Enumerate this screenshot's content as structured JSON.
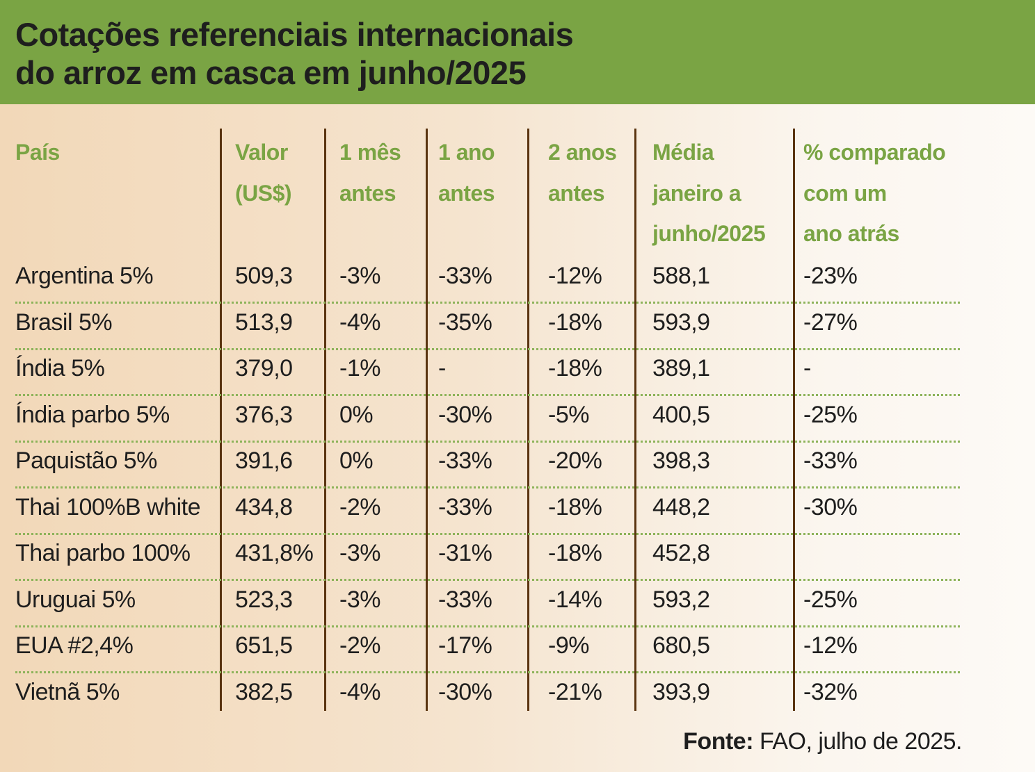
{
  "title": {
    "line1": "Cotações referenciais internacionais",
    "line2": "do arroz em casca em junho/2025"
  },
  "columns": [
    [
      "País"
    ],
    [
      "Valor",
      "(US$)"
    ],
    [
      "1 mês",
      "antes"
    ],
    [
      "1 ano",
      "antes"
    ],
    [
      "2 anos",
      "antes"
    ],
    [
      "Média",
      "janeiro a",
      "junho/2025"
    ],
    [
      "% comparado",
      "com um",
      "ano atrás"
    ]
  ],
  "rows": [
    [
      "Argentina 5%",
      "509,3",
      "-3%",
      "-33%",
      "-12%",
      "588,1",
      "-23%"
    ],
    [
      "Brasil 5%",
      "513,9",
      "-4%",
      "-35%",
      "-18%",
      "593,9",
      "-27%"
    ],
    [
      "Índia 5%",
      "379,0",
      "-1%",
      "-",
      "-18%",
      "389,1",
      "-"
    ],
    [
      "Índia parbo 5%",
      "376,3",
      "0%",
      "-30%",
      "-5%",
      "400,5",
      "-25%"
    ],
    [
      "Paquistão 5%",
      "391,6",
      "0%",
      "-33%",
      "-20%",
      "398,3",
      "-33%"
    ],
    [
      "Thai 100%B white",
      "434,8",
      "-2%",
      "-33%",
      "-18%",
      "448,2",
      "-30%"
    ],
    [
      "Thai parbo 100%",
      "431,8%",
      "-3%",
      "-31%",
      "-18%",
      "452,8",
      ""
    ],
    [
      "Uruguai 5%",
      "523,3",
      "-3%",
      "-33%",
      "-14%",
      "593,2",
      "-25%"
    ],
    [
      "EUA #2,4%",
      "651,5",
      "-2%",
      "-17%",
      "-9%",
      "680,5",
      "-12%"
    ],
    [
      "Vietnã 5%",
      "382,5",
      "-4%",
      "-30%",
      "-21%",
      "393,9",
      "-32%"
    ]
  ],
  "source": {
    "label": "Fonte:",
    "text": " FAO, julho de 2025."
  }
}
